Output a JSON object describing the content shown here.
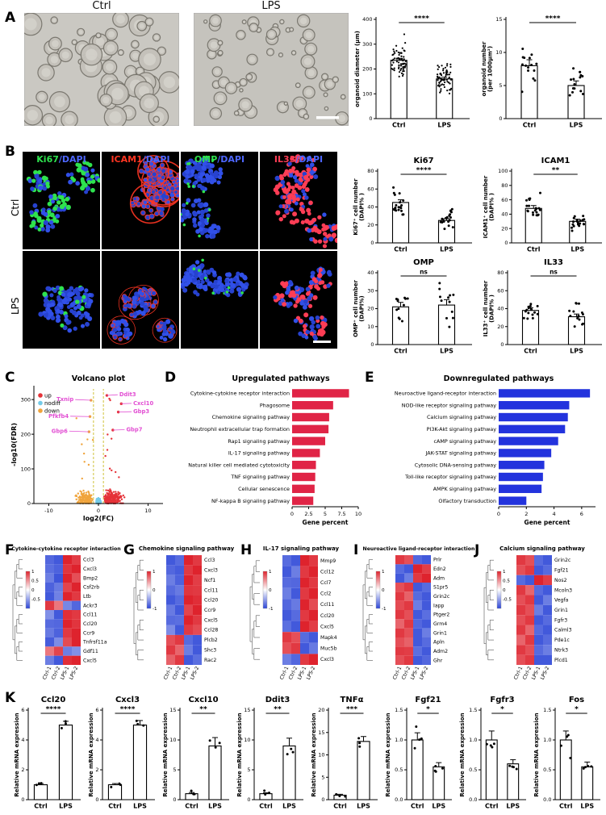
{
  "panels": {
    "A": {
      "label": "A",
      "images": [
        {
          "label": "Ctrl"
        },
        {
          "label": "LPS"
        }
      ]
    },
    "B": {
      "label": "B",
      "row_labels": [
        "Ctrl",
        "LPS"
      ],
      "columns": [
        {
          "marker": "Ki67",
          "marker_color": "#2ee24e",
          "dapi": "/DAPI",
          "dapi_color": "#4d66ff"
        },
        {
          "marker": "ICAM1",
          "marker_color": "#ff3522",
          "dapi": "/DAPI",
          "dapi_color": "#4d66ff"
        },
        {
          "marker": "OMP",
          "marker_color": "#2ee24e",
          "dapi": "/DAPI",
          "dapi_color": "#4d66ff"
        },
        {
          "marker": "IL33",
          "marker_color": "#ff3d55",
          "dapi": "/DAPI",
          "dapi_color": "#4d66ff"
        }
      ]
    },
    "C": {
      "label": "C"
    },
    "D": {
      "label": "D"
    },
    "E": {
      "label": "E"
    },
    "F": {
      "label": "F"
    },
    "G": {
      "label": "G"
    },
    "H": {
      "label": "H"
    },
    "I": {
      "label": "I"
    },
    "J": {
      "label": "J"
    },
    "K": {
      "label": "K"
    }
  },
  "chart_data": [
    {
      "id": "A_diameter",
      "type": "bar",
      "categories": [
        "Ctrl",
        "LPS"
      ],
      "values": [
        235,
        160
      ],
      "errors": [
        8,
        7
      ],
      "sig": "****",
      "ylabel": "organoid diameter (μm)",
      "ylim": [
        0,
        400
      ],
      "yticks": [
        0,
        100,
        200,
        300,
        400
      ],
      "n_points": 70,
      "spread": [
        60,
        50
      ]
    },
    {
      "id": "A_number",
      "type": "bar",
      "categories": [
        "Ctrl",
        "LPS"
      ],
      "values": [
        8,
        5
      ],
      "errors": [
        0.9,
        0.7
      ],
      "sig": "****",
      "ylabel": "organoid number\n(per 1000μm²)",
      "ylim": [
        0,
        15
      ],
      "yticks": [
        0,
        5,
        10,
        15
      ],
      "n_points": 15,
      "spread": [
        2.5,
        2
      ]
    },
    {
      "id": "B_Ki67",
      "type": "bar",
      "title": "Ki67",
      "categories": [
        "Ctrl",
        "LPS"
      ],
      "values": [
        45,
        25
      ],
      "errors": [
        3,
        2
      ],
      "sig": "****",
      "ylabel": "Ki67⁺ cell number\n(DAPI% )",
      "ylim": [
        0,
        80
      ],
      "yticks": [
        0,
        20,
        40,
        60,
        80
      ],
      "n_points": 20,
      "spread": [
        14,
        9
      ]
    },
    {
      "id": "B_ICAM1",
      "type": "bar",
      "title": "ICAM1",
      "categories": [
        "Ctrl",
        "LPS"
      ],
      "values": [
        48,
        30
      ],
      "errors": [
        4,
        3
      ],
      "sig": "**",
      "ylabel": "ICAM1⁺ cell number\n(DAPI% )",
      "ylim": [
        0,
        100
      ],
      "yticks": [
        0,
        20,
        40,
        60,
        80,
        100
      ],
      "n_points": 20,
      "spread": [
        16,
        12
      ]
    },
    {
      "id": "B_OMP",
      "type": "bar",
      "title": "OMP",
      "categories": [
        "Ctrl",
        "LPS"
      ],
      "values": [
        21,
        22
      ],
      "errors": [
        2.5,
        3
      ],
      "sig": "ns",
      "ylabel": "OMP⁺ cell number\n(DAPI%)",
      "ylim": [
        0,
        40
      ],
      "yticks": [
        0,
        10,
        20,
        30,
        40
      ],
      "n_points": 12,
      "spread": [
        9,
        10
      ]
    },
    {
      "id": "B_IL33",
      "type": "bar",
      "title": "IL33",
      "categories": [
        "Ctrl",
        "LPS"
      ],
      "values": [
        38,
        31
      ],
      "errors": [
        3,
        3
      ],
      "sig": "ns",
      "ylabel": "IL33⁺ cell number\n(DAPI% )",
      "ylim": [
        0,
        80
      ],
      "yticks": [
        0,
        20,
        40,
        60,
        80
      ],
      "n_points": 15,
      "spread": [
        11,
        10
      ]
    },
    {
      "id": "C_volcano",
      "type": "scatter",
      "title": "Volcano plot",
      "xlabel": "log2(FC)",
      "ylabel": "-log10(FDR)",
      "xlim": [
        -13,
        13
      ],
      "ylim": [
        0,
        340
      ],
      "xticks": [
        -10,
        0,
        10
      ],
      "yticks": [
        0,
        100,
        200,
        300
      ],
      "fc_cutoff": 1,
      "legend": [
        {
          "label": "up",
          "color": "#e53238"
        },
        {
          "label": "nodiff",
          "color": "#74cbe8"
        },
        {
          "label": "down",
          "color": "#f0a43c"
        }
      ],
      "counts": {
        "nodiff": 420,
        "up": 230,
        "down": 170
      },
      "gene_label_color": "#e24fd3",
      "threshold_line_color": "#cfc23a",
      "genes": [
        {
          "name": "Txnip",
          "x": -1.5,
          "y": 298,
          "lx": -5.0,
          "ly": 300
        },
        {
          "name": "Ddit3",
          "x": 1.7,
          "y": 312,
          "lx": 4.2,
          "ly": 314
        },
        {
          "name": "Cxcl10",
          "x": 4.6,
          "y": 288,
          "lx": 7.0,
          "ly": 289
        },
        {
          "name": "Gbp3",
          "x": 4.0,
          "y": 264,
          "lx": 7.0,
          "ly": 265
        },
        {
          "name": "Pfkfb4",
          "x": -1.7,
          "y": 251,
          "lx": -6.0,
          "ly": 252
        },
        {
          "name": "Gbp6",
          "x": -1.9,
          "y": 207,
          "lx": -6.2,
          "ly": 209
        },
        {
          "name": "Gbp7",
          "x": 2.9,
          "y": 212,
          "lx": 5.6,
          "ly": 213
        }
      ]
    },
    {
      "id": "D_pathways",
      "type": "bar",
      "orientation": "horizontal",
      "title": "Upregulated pathways",
      "xlabel": "Gene percent",
      "color": "#e02446",
      "xlim": [
        0,
        10
      ],
      "xticks": [
        0,
        2.5,
        5,
        7.5,
        10
      ],
      "categories": [
        "Cytokine-cytokine receptor interaction",
        "Phagosome",
        "Chemokine signaling pathway",
        "Neutrophil extracellular trap formation",
        "Rap1 signaling pathway",
        "IL-17 signaling pathway",
        "Natural killer cell mediated cytotoxicity",
        "TNF signaling pathway",
        "Cellular senescence",
        "NF-kappa B signaling pathway"
      ],
      "values": [
        8.6,
        6.2,
        5.6,
        5.5,
        5.0,
        4.2,
        3.6,
        3.5,
        3.4,
        3.2
      ]
    },
    {
      "id": "E_pathways",
      "type": "bar",
      "orientation": "horizontal",
      "title": "Downregulated pathways",
      "xlabel": "Gene percent",
      "color": "#2333dd",
      "xlim": [
        0,
        7
      ],
      "xticks": [
        0,
        2,
        4,
        6
      ],
      "categories": [
        "Neuroactive ligand-receptor interaction",
        "NOD-like receptor signaling pathway",
        "Calcium signaling pathway",
        "PI3K-Akt signaling pathway",
        "cAMP signaling pathway",
        "JAK-STAT signaling pathway",
        "Cytosolic DNA-sensing pathway",
        "Toll-like receptor signaling pathway",
        "AMPK signaling pathway",
        "Olfactory transduction"
      ],
      "values": [
        6.6,
        5.1,
        5.0,
        4.8,
        4.3,
        3.8,
        3.3,
        3.2,
        3.1,
        2.0
      ]
    },
    {
      "id": "F_heatmap",
      "type": "heatmap",
      "title": "Cytokine-cytokine receptor interaction",
      "columns": [
        "Ctrl-1",
        "Ctrl-2",
        "LPS-1",
        "LPS-2"
      ],
      "scale_ticks": [
        1,
        0.5,
        0,
        -0.5
      ],
      "genes": [
        "Ccl3",
        "Cxcl3",
        "Bmp2",
        "Csf2rb",
        "Ltb",
        "Ackr3",
        "Ccl11",
        "Ccl20",
        "Ccr9",
        "Tnfrsf11a",
        "Gdf11",
        "Cxcl5"
      ],
      "values": [
        [
          -0.82,
          -0.9,
          1.0,
          0.88
        ],
        [
          -0.78,
          -0.85,
          0.92,
          1.0
        ],
        [
          -0.7,
          -0.92,
          1.0,
          0.8
        ],
        [
          -0.85,
          -0.72,
          0.85,
          1.0
        ],
        [
          -0.9,
          -0.68,
          1.0,
          0.9
        ],
        [
          0.9,
          0.62,
          -0.65,
          -0.82
        ],
        [
          -0.6,
          -0.9,
          0.95,
          0.9
        ],
        [
          -0.8,
          -0.82,
          1.0,
          0.92
        ],
        [
          -0.72,
          -0.85,
          0.9,
          1.0
        ],
        [
          -0.88,
          -0.62,
          0.82,
          1.0
        ],
        [
          0.62,
          0.85,
          -0.7,
          -0.6
        ],
        [
          -0.7,
          -0.9,
          0.95,
          1.0
        ]
      ]
    },
    {
      "id": "G_heatmap",
      "type": "heatmap",
      "title": "Chemokine signaling pathway",
      "columns": [
        "Ctrl-1",
        "Ctrl-2",
        "LPS-1",
        "LPS-2"
      ],
      "scale_ticks": [
        1,
        0,
        -1
      ],
      "genes": [
        "Ccl3",
        "Cxcl3",
        "Ncf1",
        "Ccl11",
        "Ccl20",
        "Ccr9",
        "Cxcl5",
        "Ccl28",
        "Plcb2",
        "Shc3",
        "Rac2"
      ],
      "values": [
        [
          -0.9,
          -0.8,
          1.0,
          0.9
        ],
        [
          -0.82,
          -0.88,
          0.9,
          1.0
        ],
        [
          -0.7,
          -0.85,
          1.0,
          0.88
        ],
        [
          -0.8,
          -0.72,
          0.92,
          0.9
        ],
        [
          -0.9,
          -0.8,
          1.0,
          0.95
        ],
        [
          -0.72,
          -0.9,
          0.85,
          1.0
        ],
        [
          -0.8,
          -0.78,
          1.0,
          0.9
        ],
        [
          -0.62,
          -0.9,
          0.9,
          0.82
        ],
        [
          0.8,
          0.9,
          -0.8,
          -0.9
        ],
        [
          0.9,
          0.7,
          -0.7,
          -0.9
        ],
        [
          0.72,
          0.9,
          -0.9,
          -0.78
        ]
      ]
    },
    {
      "id": "H_heatmap",
      "type": "heatmap",
      "title": "IL-17 signaling pathway",
      "columns": [
        "Ctrl-1",
        "Ctrl-2",
        "LPS-1",
        "LPS-2"
      ],
      "scale_ticks": [
        1,
        0,
        -1
      ],
      "genes": [
        "Mmp9",
        "Ccl12",
        "Ccl7",
        "Ccl2",
        "Ccl11",
        "Ccl20",
        "Cxcl5",
        "Mapk4",
        "Muc5b",
        "Cxcl3"
      ],
      "values": [
        [
          -0.8,
          -0.9,
          1.0,
          0.9
        ],
        [
          -0.9,
          -0.7,
          0.9,
          1.0
        ],
        [
          -0.8,
          -0.82,
          1.0,
          0.9
        ],
        [
          -0.7,
          -0.9,
          0.9,
          1.0
        ],
        [
          -0.82,
          -0.72,
          1.0,
          0.82
        ],
        [
          -0.9,
          -0.8,
          0.9,
          1.0
        ],
        [
          -0.78,
          -0.9,
          1.0,
          0.88
        ],
        [
          0.9,
          0.8,
          -0.8,
          -0.9
        ],
        [
          0.8,
          0.9,
          -0.9,
          -0.72
        ],
        [
          -0.7,
          -0.82,
          0.9,
          1.0
        ]
      ]
    },
    {
      "id": "I_heatmap",
      "type": "heatmap",
      "title": "Neuroactive ligand-receptor interaction",
      "columns": [
        "Ctrl-1",
        "Ctrl-2",
        "LPS-1",
        "LPS-2"
      ],
      "scale_ticks": [
        1,
        0,
        -1
      ],
      "genes": [
        "Prlr",
        "Edn2",
        "Adm",
        "S1pr5",
        "Grin2c",
        "Iapp",
        "Ptger2",
        "Grm4",
        "Grin1",
        "Apln",
        "Adm2",
        "Ghr"
      ],
      "values": [
        [
          0.9,
          0.8,
          -0.82,
          -0.9
        ],
        [
          -0.8,
          -0.9,
          1.0,
          0.88
        ],
        [
          -0.9,
          -0.7,
          0.9,
          1.0
        ],
        [
          0.8,
          0.9,
          -0.9,
          -0.8
        ],
        [
          0.9,
          0.72,
          -0.8,
          -0.9
        ],
        [
          0.82,
          0.9,
          -0.7,
          -0.9
        ],
        [
          0.9,
          0.8,
          -0.9,
          -0.78
        ],
        [
          0.7,
          0.9,
          -0.82,
          -0.9
        ],
        [
          0.9,
          0.8,
          -0.9,
          -0.7
        ],
        [
          0.8,
          0.72,
          -0.9,
          -0.8
        ],
        [
          0.9,
          0.88,
          -0.78,
          -0.9
        ],
        [
          0.8,
          0.9,
          -0.9,
          -0.82
        ]
      ]
    },
    {
      "id": "J_heatmap",
      "type": "heatmap",
      "title": "Calcium signaling pathway",
      "columns": [
        "Ctrl-1",
        "Ctrl-2",
        "LPS-1",
        "LPS-2"
      ],
      "scale_ticks": [
        1,
        0.5,
        0,
        -0.5
      ],
      "genes": [
        "Grin2c",
        "Fgf21",
        "Nos2",
        "Mcoln3",
        "Vegfa",
        "Grin1",
        "Fgfr3",
        "Calml3",
        "Pde1c",
        "Ntrk3",
        "Plcd1"
      ],
      "values": [
        [
          0.9,
          0.8,
          -0.8,
          -0.9
        ],
        [
          0.8,
          0.9,
          -0.9,
          -0.8
        ],
        [
          -0.8,
          -0.9,
          1.0,
          0.88
        ],
        [
          0.9,
          0.7,
          -0.8,
          -0.9
        ],
        [
          0.8,
          0.9,
          -0.9,
          -0.7
        ],
        [
          0.9,
          0.8,
          -0.7,
          -0.9
        ],
        [
          0.8,
          0.9,
          -0.9,
          -0.8
        ],
        [
          0.9,
          0.7,
          -0.8,
          -0.9
        ],
        [
          0.7,
          0.9,
          -0.9,
          -0.8
        ],
        [
          0.9,
          0.8,
          -0.8,
          -0.7
        ],
        [
          0.8,
          0.9,
          -0.9,
          -0.9
        ]
      ]
    },
    {
      "id": "K_Ccl20",
      "type": "bar",
      "title": "Ccl20",
      "categories": [
        "Ctrl",
        "LPS"
      ],
      "values": [
        1.0,
        5.0
      ],
      "errors": [
        0.08,
        0.25
      ],
      "sig": "****",
      "ylabel": "Relative mRNA expression",
      "ylim": [
        0,
        6
      ],
      "yticks": [
        0,
        2,
        4,
        6
      ],
      "n_points": 3,
      "spread": [
        0.15,
        0.45
      ]
    },
    {
      "id": "K_Cxcl3",
      "type": "bar",
      "title": "Cxcl3",
      "categories": [
        "Ctrl",
        "LPS"
      ],
      "values": [
        1.0,
        5.0
      ],
      "errors": [
        0.08,
        0.3
      ],
      "sig": "****",
      "ylabel": "Relative mRNA expression",
      "ylim": [
        0,
        6
      ],
      "yticks": [
        0,
        2,
        4,
        6
      ],
      "n_points": 3,
      "spread": [
        0.15,
        0.5
      ]
    },
    {
      "id": "K_Cxcl10",
      "type": "bar",
      "title": "Cxcl10",
      "categories": [
        "Ctrl",
        "LPS"
      ],
      "values": [
        1.0,
        9.0
      ],
      "errors": [
        0.2,
        1.4
      ],
      "sig": "**",
      "ylabel": "Relative mRNA expression",
      "ylim": [
        0,
        15
      ],
      "yticks": [
        0,
        5,
        10,
        15
      ],
      "n_points": 3,
      "spread": [
        0.4,
        2.2
      ]
    },
    {
      "id": "K_Ddit3",
      "type": "bar",
      "title": "Ddit3",
      "categories": [
        "Ctrl",
        "LPS"
      ],
      "values": [
        1.0,
        9.0
      ],
      "errors": [
        0.15,
        1.3
      ],
      "sig": "**",
      "ylabel": "Relative mRNA expression",
      "ylim": [
        0,
        15
      ],
      "yticks": [
        0,
        5,
        10,
        15
      ],
      "n_points": 3,
      "spread": [
        0.3,
        2.0
      ]
    },
    {
      "id": "K_TNFa",
      "type": "bar",
      "title": "TNFα",
      "categories": [
        "Ctrl",
        "LPS"
      ],
      "values": [
        1.0,
        13.0
      ],
      "errors": [
        0.2,
        1.1
      ],
      "sig": "***",
      "ylabel": "Relative mRNA expression",
      "ylim": [
        0,
        20
      ],
      "yticks": [
        0,
        5,
        10,
        15,
        20
      ],
      "n_points": 3,
      "spread": [
        0.3,
        1.8
      ]
    },
    {
      "id": "K_Fgf21",
      "type": "bar",
      "title": "Fgf21",
      "categories": [
        "Ctrl",
        "LPS"
      ],
      "values": [
        1.0,
        0.55
      ],
      "errors": [
        0.12,
        0.07
      ],
      "sig": "*",
      "ylabel": "Relative mRNA expression",
      "ylim": [
        0,
        1.5
      ],
      "yticks": [
        "0.0",
        "0.5",
        "1.0",
        "1.5"
      ],
      "n_points": 4,
      "spread": [
        0.2,
        0.12
      ]
    },
    {
      "id": "K_Fgfr3",
      "type": "bar",
      "title": "Fgfr3",
      "categories": [
        "Ctrl",
        "LPS"
      ],
      "values": [
        1.0,
        0.6
      ],
      "errors": [
        0.15,
        0.07
      ],
      "sig": "*",
      "ylabel": "Relative mRNA expression",
      "ylim": [
        0,
        1.5
      ],
      "yticks": [
        "0.0",
        "0.5",
        "1.0",
        "1.5"
      ],
      "n_points": 4,
      "spread": [
        0.25,
        0.12
      ]
    },
    {
      "id": "K_Fos",
      "type": "bar",
      "title": "Fos",
      "categories": [
        "Ctrl",
        "LPS"
      ],
      "values": [
        1.0,
        0.55
      ],
      "errors": [
        0.15,
        0.08
      ],
      "sig": "*",
      "ylabel": "Relative mRNA expression",
      "ylim": [
        0,
        1.5
      ],
      "yticks": [
        "0.0",
        "0.5",
        "1.0",
        "1.5"
      ],
      "n_points": 4,
      "spread": [
        0.25,
        0.12
      ]
    }
  ]
}
